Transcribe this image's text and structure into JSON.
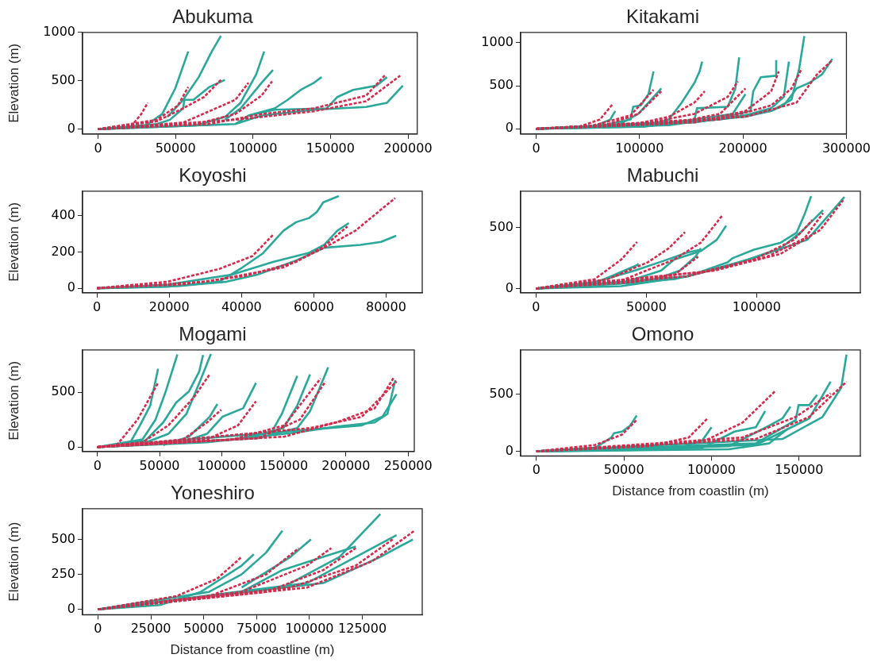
{
  "chart_data": [
    {
      "type": "line",
      "title": "Abukuma",
      "ylabel": "Elevation (m)",
      "xlim": [
        -10000,
        206000
      ],
      "ylim": [
        -50,
        1000
      ],
      "xticks": [
        0,
        50000,
        100000,
        150000,
        200000
      ],
      "yticks": [
        0,
        500,
        1000
      ],
      "grid": false,
      "series": [
        {
          "type": "line",
          "color": "#2aa99b",
          "x": [
            0,
            29500,
            41400,
            49800,
            58200
          ],
          "values": [
            0,
            24,
            156,
            420,
            803
          ]
        },
        {
          "type": "line",
          "color": "#2aa99b",
          "x": [
            44700,
            54900,
            65000,
            73400,
            79300
          ],
          "values": [
            126,
            303,
            538,
            803,
            964
          ]
        },
        {
          "type": "line",
          "color": "#2aa99b",
          "x": [
            0,
            38000,
            46400,
            54900,
            55700,
            61600,
            71800,
            81900
          ],
          "values": [
            0,
            53,
            97,
            215,
            303,
            303,
            435,
            509
          ]
        },
        {
          "type": "line",
          "color": "#2aa99b",
          "x": [
            0,
            63300,
            81900,
            92000,
            102100,
            107200
          ],
          "values": [
            0,
            38,
            126,
            273,
            567,
            803
          ]
        },
        {
          "type": "line",
          "color": "#2aa99b",
          "x": [
            81900,
            92000,
            105500,
            112900
          ],
          "values": [
            97,
            215,
            479,
            612
          ]
        },
        {
          "type": "line",
          "color": "#2aa99b",
          "x": [
            88600,
            97100,
            114000,
            122400,
            130800,
            139300,
            144300
          ],
          "values": [
            53,
            141,
            215,
            303,
            406,
            479,
            538
          ]
        },
        {
          "type": "line",
          "color": "#2aa99b",
          "x": [
            97100,
            114000,
            147700,
            154400,
            164600,
            179800,
            186500
          ],
          "values": [
            141,
            200,
            215,
            332,
            406,
            450,
            538
          ]
        },
        {
          "type": "line",
          "color": "#2aa99b",
          "x": [
            0,
            54900,
            88600,
            105500,
            139300,
            173000,
            186500,
            196700
          ],
          "values": [
            0,
            32,
            53,
            141,
            200,
            229,
            273,
            450
          ]
        },
        {
          "type": "line",
          "color": "#d6294b",
          "line_style": "dashed",
          "x": [
            0,
            21100,
            27900,
            32100
          ],
          "values": [
            0,
            24,
            156,
            273
          ]
        },
        {
          "type": "line",
          "color": "#d6294b",
          "line_style": "dashed",
          "x": [
            0,
            38000,
            51500,
            58200
          ],
          "values": [
            0,
            97,
            244,
            435
          ]
        },
        {
          "type": "line",
          "color": "#d6294b",
          "line_style": "dashed",
          "x": [
            0,
            38000,
            54900,
            68400,
            79300
          ],
          "values": [
            0,
            82,
            215,
            332,
            509
          ]
        },
        {
          "type": "line",
          "color": "#d6294b",
          "line_style": "dashed",
          "x": [
            0,
            54900,
            71800,
            88600,
            97100
          ],
          "values": [
            0,
            68,
            185,
            303,
            479
          ]
        },
        {
          "type": "line",
          "color": "#d6294b",
          "line_style": "dashed",
          "x": [
            0,
            63300,
            88600,
            105500,
            112300
          ],
          "values": [
            0,
            53,
            156,
            347,
            494
          ]
        },
        {
          "type": "line",
          "color": "#d6294b",
          "line_style": "dashed",
          "x": [
            0,
            71800,
            105500,
            139300,
            173000,
            185700
          ],
          "values": [
            0,
            53,
            156,
            215,
            347,
            567
          ]
        },
        {
          "type": "line",
          "color": "#d6294b",
          "line_style": "dashed",
          "x": [
            0,
            88600,
            139300,
            173000,
            195000
          ],
          "values": [
            0,
            97,
            185,
            288,
            553
          ]
        }
      ]
    },
    {
      "type": "line",
      "title": "Kitakami",
      "xlim": [
        -15000,
        300000
      ],
      "ylim": [
        -60,
        1120
      ],
      "xticks": [
        0,
        100000,
        200000,
        300000
      ],
      "yticks": [
        0,
        500,
        1000
      ],
      "grid": false,
      "series": [
        {
          "type": "line",
          "color": "#2aa99b",
          "x": [
            0,
            54300,
            71600,
            76500
          ],
          "values": [
            0,
            16,
            108,
            207
          ]
        },
        {
          "type": "line",
          "color": "#2aa99b",
          "x": [
            54300,
            91400,
            93800,
            101200,
            108600,
            113500
          ],
          "values": [
            16,
            108,
            256,
            272,
            403,
            666
          ]
        },
        {
          "type": "line",
          "color": "#2aa99b",
          "x": [
            79000,
            98800,
            121000
          ],
          "values": [
            43,
            174,
            469
          ]
        },
        {
          "type": "line",
          "color": "#2aa99b",
          "x": [
            103700,
            128400,
            140700,
            153100,
            158000,
            160500
          ],
          "values": [
            26,
            108,
            305,
            535,
            666,
            781
          ]
        },
        {
          "type": "line",
          "color": "#2aa99b",
          "x": [
            0,
            103700,
            153100,
            155500,
            185200,
            192600,
            196300
          ],
          "values": [
            0,
            26,
            108,
            239,
            256,
            469,
            830
          ]
        },
        {
          "type": "line",
          "color": "#2aa99b",
          "x": [
            153100,
            190100,
            202400
          ],
          "values": [
            108,
            174,
            403
          ]
        },
        {
          "type": "line",
          "color": "#2aa99b",
          "x": [
            0,
            128400,
            177800,
            207400,
            209900,
            217300,
            232100,
            232100
          ],
          "values": [
            0,
            43,
            125,
            207,
            436,
            600,
            617,
            797
          ]
        },
        {
          "type": "line",
          "color": "#2aa99b",
          "x": [
            0,
            153100,
            202400,
            227200,
            239500,
            244400
          ],
          "values": [
            0,
            75,
            157,
            239,
            371,
            781
          ]
        },
        {
          "type": "line",
          "color": "#2aa99b",
          "x": [
            0,
            177800,
            227200,
            246900,
            254300,
            259300
          ],
          "values": [
            0,
            108,
            207,
            338,
            699,
            1076
          ]
        },
        {
          "type": "line",
          "color": "#2aa99b",
          "x": [
            0,
            103700,
            202400,
            227200,
            239500,
            251800,
            264200,
            276500,
            286400
          ],
          "values": [
            0,
            26,
            141,
            207,
            272,
            469,
            535,
            633,
            813
          ]
        },
        {
          "type": "line",
          "color": "#d6294b",
          "line_style": "dashed",
          "x": [
            0,
            42000,
            61700,
            74100
          ],
          "values": [
            0,
            26,
            108,
            289
          ]
        },
        {
          "type": "line",
          "color": "#d6294b",
          "line_style": "dashed",
          "x": [
            0,
            54300,
            91400,
            113500
          ],
          "values": [
            0,
            36,
            157,
            453
          ]
        },
        {
          "type": "line",
          "color": "#d6294b",
          "line_style": "dashed",
          "x": [
            0,
            66700,
            98800,
            121000
          ],
          "values": [
            0,
            43,
            174,
            436
          ]
        },
        {
          "type": "line",
          "color": "#d6294b",
          "line_style": "dashed",
          "x": [
            0,
            91400,
            128400,
            153100,
            163000
          ],
          "values": [
            0,
            43,
            141,
            305,
            436
          ]
        },
        {
          "type": "line",
          "color": "#d6294b",
          "line_style": "dashed",
          "x": [
            0,
            103700,
            153100,
            185200,
            195000
          ],
          "values": [
            0,
            59,
            174,
            371,
            551
          ]
        },
        {
          "type": "line",
          "color": "#d6294b",
          "line_style": "dashed",
          "x": [
            0,
            128400,
            177800,
            202400
          ],
          "values": [
            0,
            59,
            174,
            469
          ]
        },
        {
          "type": "line",
          "color": "#d6294b",
          "line_style": "dashed",
          "x": [
            0,
            153100,
            202400,
            227200,
            234600
          ],
          "values": [
            0,
            75,
            207,
            436,
            666
          ]
        },
        {
          "type": "line",
          "color": "#d6294b",
          "line_style": "dashed",
          "x": [
            0,
            177800,
            227200,
            246900,
            256800
          ],
          "values": [
            0,
            108,
            272,
            469,
            699
          ]
        },
        {
          "type": "line",
          "color": "#d6294b",
          "line_style": "dashed",
          "x": [
            0,
            202400,
            251800,
            271600,
            286400
          ],
          "values": [
            0,
            141,
            305,
            633,
            797
          ]
        }
      ]
    },
    {
      "type": "line",
      "title": "Koyoshi",
      "ylabel": "Elevation (m)",
      "xlim": [
        -4000,
        90000
      ],
      "ylim": [
        -25,
        535
      ],
      "xticks": [
        0,
        20000,
        40000,
        60000,
        80000
      ],
      "yticks": [
        0,
        200,
        400
      ],
      "grid": false,
      "series": [
        {
          "type": "line",
          "color": "#2aa99b",
          "x": [
            0,
            19600,
            33800,
            40200,
            45900,
            51600,
            55100,
            58700,
            60800,
            62600,
            66900
          ],
          "values": [
            0,
            8,
            36,
            114,
            192,
            317,
            364,
            387,
            419,
            473,
            508
          ]
        },
        {
          "type": "line",
          "color": "#2aa99b",
          "x": [
            0,
            19600,
            37300,
            48700,
            58700,
            62900,
            66500,
            69700
          ],
          "values": [
            0,
            20,
            75,
            145,
            195,
            239,
            317,
            359
          ]
        },
        {
          "type": "line",
          "color": "#2aa99b",
          "x": [
            0,
            23100,
            35900,
            44400,
            55100,
            62900,
            72900,
            78600,
            82800
          ],
          "values": [
            0,
            13,
            36,
            75,
            153,
            223,
            239,
            255,
            289
          ]
        },
        {
          "type": "line",
          "color": "#d6294b",
          "line_style": "dashed",
          "x": [
            0,
            19600,
            33800,
            43000,
            48700
          ],
          "values": [
            0,
            36,
            106,
            177,
            294
          ]
        },
        {
          "type": "line",
          "color": "#d6294b",
          "line_style": "dashed",
          "x": [
            0,
            23100,
            40900,
            55100,
            62900,
            69300
          ],
          "values": [
            0,
            20,
            67,
            145,
            231,
            341
          ]
        },
        {
          "type": "line",
          "color": "#d6294b",
          "line_style": "dashed",
          "x": [
            0,
            30200,
            51500,
            62900,
            71500,
            82500
          ],
          "values": [
            0,
            36,
            114,
            223,
            317,
            497
          ]
        }
      ]
    },
    {
      "type": "line",
      "title": "Mabuchi",
      "xlim": [
        -7000,
        147000
      ],
      "ylim": [
        -35,
        800
      ],
      "xticks": [
        0,
        50000,
        100000
      ],
      "yticks": [
        0,
        500
      ],
      "grid": false,
      "series": [
        {
          "type": "line",
          "color": "#2aa99b",
          "x": [
            0,
            26500,
            45800,
            46400
          ],
          "values": [
            0,
            42,
            192,
            204
          ]
        },
        {
          "type": "line",
          "color": "#2aa99b",
          "x": [
            0,
            26500,
            44600,
            57800,
            68700,
            74700
          ],
          "values": [
            0,
            53,
            146,
            227,
            296,
            319
          ]
        },
        {
          "type": "line",
          "color": "#2aa99b",
          "x": [
            0,
            38600,
            56600,
            62600,
            74700,
            81900,
            86200
          ],
          "values": [
            0,
            42,
            146,
            238,
            308,
            400,
            516
          ]
        },
        {
          "type": "line",
          "color": "#2aa99b",
          "x": [
            0,
            50600,
            65100,
            72300,
            74700
          ],
          "values": [
            0,
            53,
            146,
            262,
            331
          ]
        },
        {
          "type": "line",
          "color": "#2aa99b",
          "x": [
            0,
            38600,
            68700,
            86800,
            89200,
            98800,
            110900,
            118100,
            121700,
            124700
          ],
          "values": [
            0,
            19,
            100,
            215,
            250,
            319,
            377,
            458,
            609,
            759
          ]
        },
        {
          "type": "line",
          "color": "#2aa99b",
          "x": [
            0,
            62600,
            86800,
            110900,
            120500,
            130100
          ],
          "values": [
            0,
            76,
            181,
            331,
            470,
            644
          ]
        },
        {
          "type": "line",
          "color": "#2aa99b",
          "x": [
            0,
            68700,
            98800,
            122900,
            139800
          ],
          "values": [
            0,
            100,
            250,
            400,
            752
          ]
        },
        {
          "type": "line",
          "color": "#d6294b",
          "line_style": "dashed",
          "x": [
            0,
            26500,
            38600,
            45800
          ],
          "values": [
            0,
            76,
            238,
            382
          ]
        },
        {
          "type": "line",
          "color": "#d6294b",
          "line_style": "dashed",
          "x": [
            0,
            32500,
            50600,
            60200,
            67500
          ],
          "values": [
            0,
            76,
            215,
            331,
            463
          ]
        },
        {
          "type": "line",
          "color": "#d6294b",
          "line_style": "dashed",
          "x": [
            0,
            38600,
            62600,
            74700,
            84300
          ],
          "values": [
            0,
            65,
            238,
            377,
            597
          ]
        },
        {
          "type": "line",
          "color": "#d6294b",
          "line_style": "dashed",
          "x": [
            0,
            44600,
            62600,
            73500
          ],
          "values": [
            0,
            53,
            111,
            262
          ]
        },
        {
          "type": "line",
          "color": "#d6294b",
          "line_style": "dashed",
          "x": [
            0,
            68700,
            98800,
            116900,
            125300
          ],
          "values": [
            0,
            100,
            238,
            400,
            563
          ]
        },
        {
          "type": "line",
          "color": "#d6294b",
          "line_style": "dashed",
          "x": [
            0,
            74700,
            104800,
            121700,
            130100
          ],
          "values": [
            0,
            134,
            262,
            412,
            620
          ]
        },
        {
          "type": "line",
          "color": "#d6294b",
          "line_style": "dashed",
          "x": [
            0,
            80700,
            110900,
            128900,
            139200
          ],
          "values": [
            0,
            146,
            285,
            482,
            725
          ]
        }
      ]
    },
    {
      "type": "line",
      "title": "Mogami",
      "ylabel": "Elevation (m)",
      "xlim": [
        -12000,
        255000
      ],
      "ylim": [
        -40,
        885
      ],
      "xticks": [
        0,
        50000,
        100000,
        150000,
        200000,
        250000
      ],
      "yticks": [
        0,
        500
      ],
      "grid": false,
      "series": [
        {
          "type": "line",
          "color": "#2aa99b",
          "x": [
            0,
            25900,
            34200,
            42500,
            48800
          ],
          "values": [
            0,
            31,
            198,
            379,
            714
          ]
        },
        {
          "type": "line",
          "color": "#2aa99b",
          "x": [
            0,
            36300,
            46700,
            55000,
            64300
          ],
          "values": [
            0,
            70,
            250,
            508,
            843
          ]
        },
        {
          "type": "line",
          "color": "#2aa99b",
          "x": [
            0,
            38400,
            52900,
            63300,
            73700,
            81900,
            85000
          ],
          "values": [
            0,
            57,
            224,
            405,
            508,
            688,
            838
          ]
        },
        {
          "type": "line",
          "color": "#2aa99b",
          "x": [
            36300,
            57100,
            71600,
            82000,
            91300
          ],
          "values": [
            31,
            121,
            302,
            585,
            848
          ]
        },
        {
          "type": "line",
          "color": "#2aa99b",
          "x": [
            52900,
            73700,
            90300,
            96500
          ],
          "values": [
            18,
            95,
            276,
            392
          ]
        },
        {
          "type": "line",
          "color": "#2aa99b",
          "x": [
            0,
            67400,
            88200,
            100600,
            117200,
            127600
          ],
          "values": [
            0,
            44,
            121,
            276,
            353,
            585
          ]
        },
        {
          "type": "line",
          "color": "#2aa99b",
          "x": [
            0,
            108900,
            140100,
            148400,
            160800
          ],
          "values": [
            0,
            70,
            134,
            302,
            649
          ]
        },
        {
          "type": "line",
          "color": "#2aa99b",
          "x": [
            119300,
            149700,
            160800,
            171100
          ],
          "values": [
            82,
            173,
            379,
            662
          ]
        },
        {
          "type": "line",
          "color": "#2aa99b",
          "x": [
            0,
            129700,
            160800,
            171100,
            185700
          ],
          "values": [
            0,
            82,
            173,
            327,
            727
          ]
        },
        {
          "type": "line",
          "color": "#2aa99b",
          "x": [
            0,
            88200,
            160800,
            191900,
            223100,
            233400,
            239700
          ],
          "values": [
            0,
            44,
            134,
            186,
            224,
            302,
            611
          ]
        },
        {
          "type": "line",
          "color": "#2aa99b",
          "x": [
            0,
            171100,
            212700,
            229300,
            240700
          ],
          "values": [
            0,
            160,
            198,
            276,
            482
          ]
        },
        {
          "type": "line",
          "color": "#d6294b",
          "line_style": "dashed",
          "x": [
            0,
            15600,
            32200,
            48800
          ],
          "values": [
            0,
            18,
            250,
            585
          ]
        },
        {
          "type": "line",
          "color": "#d6294b",
          "line_style": "dashed",
          "x": [
            0,
            36300,
            57100,
            77800,
            90300
          ],
          "values": [
            0,
            44,
            198,
            456,
            662
          ]
        },
        {
          "type": "line",
          "color": "#d6294b",
          "line_style": "dashed",
          "x": [
            0,
            67400,
            88200,
            99600
          ],
          "values": [
            0,
            57,
            224,
            340
          ]
        },
        {
          "type": "line",
          "color": "#d6294b",
          "line_style": "dashed",
          "x": [
            0,
            88200,
            113100,
            127600
          ],
          "values": [
            0,
            70,
            198,
            417
          ]
        },
        {
          "type": "line",
          "color": "#d6294b",
          "line_style": "dashed",
          "x": [
            0,
            108900,
            150400,
            179500
          ],
          "values": [
            0,
            70,
            198,
            624
          ]
        },
        {
          "type": "line",
          "color": "#d6294b",
          "line_style": "dashed",
          "x": [
            0,
            129700,
            162900,
            183600
          ],
          "values": [
            0,
            82,
            250,
            598
          ]
        },
        {
          "type": "line",
          "color": "#d6294b",
          "line_style": "dashed",
          "x": [
            0,
            150400,
            191900,
            223100,
            238700
          ],
          "values": [
            0,
            95,
            224,
            353,
            637
          ]
        },
        {
          "type": "line",
          "color": "#d6294b",
          "line_style": "dashed",
          "x": [
            0,
            171100,
            212700,
            240700
          ],
          "values": [
            0,
            173,
            276,
            598
          ]
        }
      ]
    },
    {
      "type": "line",
      "title": "Omono",
      "xlabel": "Distance from coastlin (m)",
      "xlim": [
        -9000,
        185000
      ],
      "ylim": [
        -40,
        885
      ],
      "xticks": [
        0,
        50000,
        100000,
        150000
      ],
      "yticks": [
        0,
        500
      ],
      "grid": false,
      "series": [
        {
          "type": "line",
          "color": "#2aa99b",
          "x": [
            0,
            33600,
            42800,
            44300,
            48900,
            53500,
            57300
          ],
          "values": [
            0,
            31,
            121,
            159,
            172,
            223,
            313
          ]
        },
        {
          "type": "line",
          "color": "#2aa99b",
          "x": [
            0,
            79400,
            94700,
            100000
          ],
          "values": [
            0,
            18,
            95,
            210
          ]
        },
        {
          "type": "line",
          "color": "#2aa99b",
          "x": [
            0,
            94700,
            113100,
            125300,
            130600
          ],
          "values": [
            0,
            31,
            172,
            210,
            351
          ]
        },
        {
          "type": "line",
          "color": "#2aa99b",
          "x": [
            0,
            109900,
            132800,
            140500,
            145100
          ],
          "values": [
            0,
            44,
            223,
            287,
            390
          ]
        },
        {
          "type": "line",
          "color": "#2aa99b",
          "x": [
            0,
            125300,
            148100,
            149700,
            155800,
            160300
          ],
          "values": [
            0,
            69,
            274,
            403,
            403,
            492
          ]
        },
        {
          "type": "line",
          "color": "#2aa99b",
          "x": [
            0,
            125300,
            155800,
            168000
          ],
          "values": [
            0,
            56,
            287,
            608
          ]
        },
        {
          "type": "line",
          "color": "#2aa99b",
          "x": [
            0,
            140500,
            163400,
            174100,
            177100
          ],
          "values": [
            0,
            108,
            300,
            556,
            844
          ]
        },
        {
          "type": "line",
          "color": "#2aa99b",
          "x": [
            0,
            109900,
            132800,
            143500
          ],
          "values": [
            0,
            18,
            69,
            197
          ]
        },
        {
          "type": "line",
          "color": "#d6294b",
          "line_style": "dashed",
          "x": [
            0,
            33600,
            48900,
            57300
          ],
          "values": [
            0,
            56,
            146,
            274
          ]
        },
        {
          "type": "line",
          "color": "#d6294b",
          "line_style": "dashed",
          "x": [
            0,
            64100,
            87000,
            97700
          ],
          "values": [
            0,
            44,
            121,
            287
          ]
        },
        {
          "type": "line",
          "color": "#d6294b",
          "line_style": "dashed",
          "x": [
            0,
            94700,
            117600,
            136700
          ],
          "values": [
            0,
            82,
            249,
            531
          ]
        },
        {
          "type": "line",
          "color": "#d6294b",
          "line_style": "dashed",
          "x": [
            0,
            117600,
            148100,
            168000
          ],
          "values": [
            0,
            121,
            300,
            505
          ]
        },
        {
          "type": "line",
          "color": "#d6294b",
          "line_style": "dashed",
          "x": [
            0,
            125300,
            155800,
            177100
          ],
          "values": [
            0,
            108,
            300,
            608
          ]
        }
      ]
    },
    {
      "type": "line",
      "title": "Yoneshiro",
      "xlabel": "Distance from coastline (m)",
      "ylabel": "Elevation (m)",
      "xlim": [
        -7300,
        153300
      ],
      "ylim": [
        -38,
        720
      ],
      "xticks": [
        0,
        25000,
        50000,
        75000,
        100000,
        125000
      ],
      "yticks": [
        0,
        250,
        500
      ],
      "grid": false,
      "series": [
        {
          "type": "line",
          "color": "#2aa99b",
          "x": [
            0,
            29300,
            48600,
            67900,
            73700
          ],
          "values": [
            0,
            31,
            125,
            313,
            394
          ]
        },
        {
          "type": "line",
          "color": "#2aa99b",
          "x": [
            0,
            52500,
            67900,
            79500,
            87200
          ],
          "values": [
            0,
            125,
            250,
            406,
            563
          ]
        },
        {
          "type": "line",
          "color": "#2aa99b",
          "x": [
            67900,
            91000,
            100700
          ],
          "values": [
            156,
            375,
            500
          ]
        },
        {
          "type": "line",
          "color": "#2aa99b",
          "x": [
            0,
            67900,
            87200,
            106500,
            121900
          ],
          "values": [
            0,
            125,
            281,
            375,
            450
          ]
        },
        {
          "type": "line",
          "color": "#2aa99b",
          "x": [
            0,
            87200,
            114200,
            133500
          ],
          "values": [
            0,
            156,
            375,
            681
          ]
        },
        {
          "type": "line",
          "color": "#2aa99b",
          "x": [
            0,
            98800,
            121900,
            141200
          ],
          "values": [
            0,
            188,
            375,
            531
          ]
        },
        {
          "type": "line",
          "color": "#2aa99b",
          "x": [
            0,
            106500,
            133500,
            148900
          ],
          "values": [
            0,
            188,
            375,
            500
          ]
        },
        {
          "type": "line",
          "color": "#d6294b",
          "line_style": "dashed",
          "x": [
            0,
            37000,
            56300,
            67900
          ],
          "values": [
            0,
            94,
            219,
            375
          ]
        },
        {
          "type": "line",
          "color": "#d6294b",
          "line_style": "dashed",
          "x": [
            0,
            52500,
            79500,
            94900
          ],
          "values": [
            0,
            94,
            250,
            438
          ]
        },
        {
          "type": "line",
          "color": "#d6294b",
          "line_style": "dashed",
          "x": [
            0,
            67900,
            98800,
            110300
          ],
          "values": [
            0,
            125,
            313,
            438
          ]
        },
        {
          "type": "line",
          "color": "#d6294b",
          "line_style": "dashed",
          "x": [
            0,
            79500,
            106500,
            121900
          ],
          "values": [
            0,
            125,
            281,
            438
          ]
        },
        {
          "type": "line",
          "color": "#d6294b",
          "line_style": "dashed",
          "x": [
            0,
            91000,
            121900,
            139300
          ],
          "values": [
            0,
            156,
            313,
            500
          ]
        },
        {
          "type": "line",
          "color": "#d6294b",
          "line_style": "dashed",
          "x": [
            0,
            98800,
            129600,
            149700
          ],
          "values": [
            0,
            156,
            344,
            563
          ]
        }
      ]
    }
  ]
}
